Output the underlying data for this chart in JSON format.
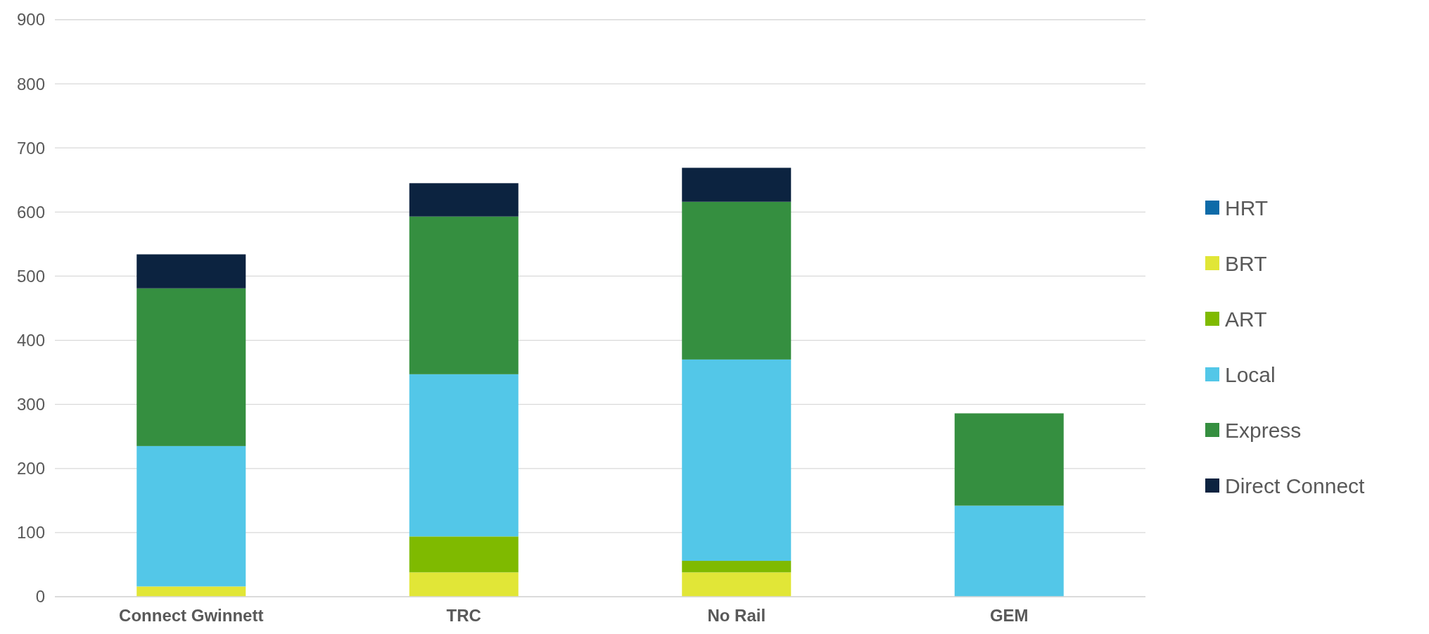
{
  "chart_data": {
    "type": "bar",
    "stacked": true,
    "categories": [
      "Connect Gwinnett",
      "TRC",
      "No Rail",
      "GEM"
    ],
    "series": [
      {
        "name": "HRT",
        "color": "#0e6ba8",
        "values": [
          0,
          0,
          0,
          0
        ]
      },
      {
        "name": "BRT",
        "color": "#e1e637",
        "values": [
          16,
          38,
          38,
          0
        ]
      },
      {
        "name": "ART",
        "color": "#7fba00",
        "values": [
          0,
          56,
          18,
          0
        ]
      },
      {
        "name": "Local",
        "color": "#53c7e8",
        "values": [
          219,
          253,
          314,
          142
        ]
      },
      {
        "name": "Express",
        "color": "#358f40",
        "values": [
          246,
          246,
          246,
          144
        ]
      },
      {
        "name": "Direct Connect",
        "color": "#0c2340",
        "values": [
          53,
          52,
          53,
          0
        ]
      }
    ],
    "ylim": [
      0,
      900
    ],
    "yticks": [
      0,
      100,
      200,
      300,
      400,
      500,
      600,
      700,
      800,
      900
    ],
    "grid": "y",
    "legend": "right"
  }
}
